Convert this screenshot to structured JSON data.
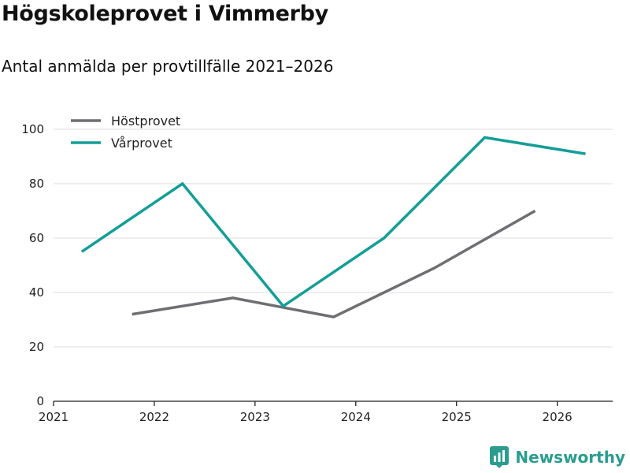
{
  "page": {
    "title": "Högskoleprovet i Vimmerby",
    "subtitle": "Antal anmälda per provtillfälle 2021–2026",
    "brand": "Newsworthy",
    "brand_icon": "bar-chart-logo-icon"
  },
  "chart_data": {
    "type": "line",
    "title": "Högskoleprovet i Vimmerby",
    "subtitle": "Antal anmälda per provtillfälle 2021–2026",
    "xlabel": "",
    "ylabel": "",
    "xlim": [
      2021,
      2026.55
    ],
    "ylim": [
      0,
      100
    ],
    "x_ticks": [
      2021,
      2022,
      2023,
      2024,
      2025,
      2026
    ],
    "y_ticks": [
      0,
      20,
      40,
      60,
      80,
      100
    ],
    "grid": true,
    "legend_position": "top-left",
    "series": [
      {
        "name": "Höstprovet",
        "color": "#6e6e73",
        "x": [
          2021.78,
          2022.78,
          2023.78,
          2024.78,
          2025.78
        ],
        "values": [
          32,
          38,
          31,
          49,
          70
        ]
      },
      {
        "name": "Vårprovet",
        "color": "#149e98",
        "x": [
          2021.28,
          2022.28,
          2023.28,
          2024.28,
          2025.28,
          2026.28
        ],
        "values": [
          55,
          80,
          35,
          60,
          97,
          91
        ]
      }
    ]
  }
}
